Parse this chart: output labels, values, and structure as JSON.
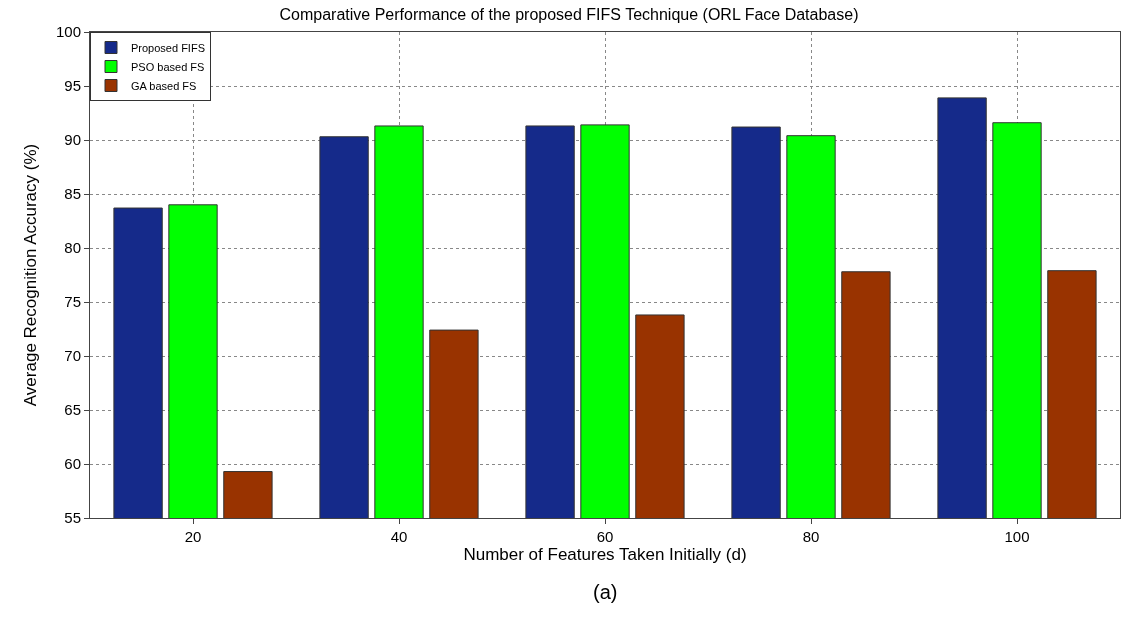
{
  "chart_data": {
    "type": "bar",
    "title": "Comparative Performance of the proposed FIFS Technique (ORL Face Database)",
    "xlabel": "Number of Features Taken Initially (d)",
    "ylabel": "Average Recognition Accuracy (%)",
    "categories": [
      "20",
      "40",
      "60",
      "80",
      "100"
    ],
    "series": [
      {
        "name": "Proposed FIFS",
        "color": "#152a8a",
        "values": [
          83.7,
          90.3,
          91.3,
          91.2,
          93.9
        ]
      },
      {
        "name": "PSO based FS",
        "color": "#00ff00",
        "values": [
          84.0,
          91.3,
          91.4,
          90.4,
          91.6
        ]
      },
      {
        "name": "GA based FS",
        "color": "#993300",
        "values": [
          59.3,
          72.4,
          73.8,
          77.8,
          77.9
        ]
      }
    ],
    "ylim": [
      55,
      100
    ],
    "yticks": [
      55,
      60,
      65,
      70,
      75,
      80,
      85,
      90,
      95,
      100
    ],
    "grid": true,
    "legend": "top left",
    "annotations": [
      "(a)"
    ]
  }
}
